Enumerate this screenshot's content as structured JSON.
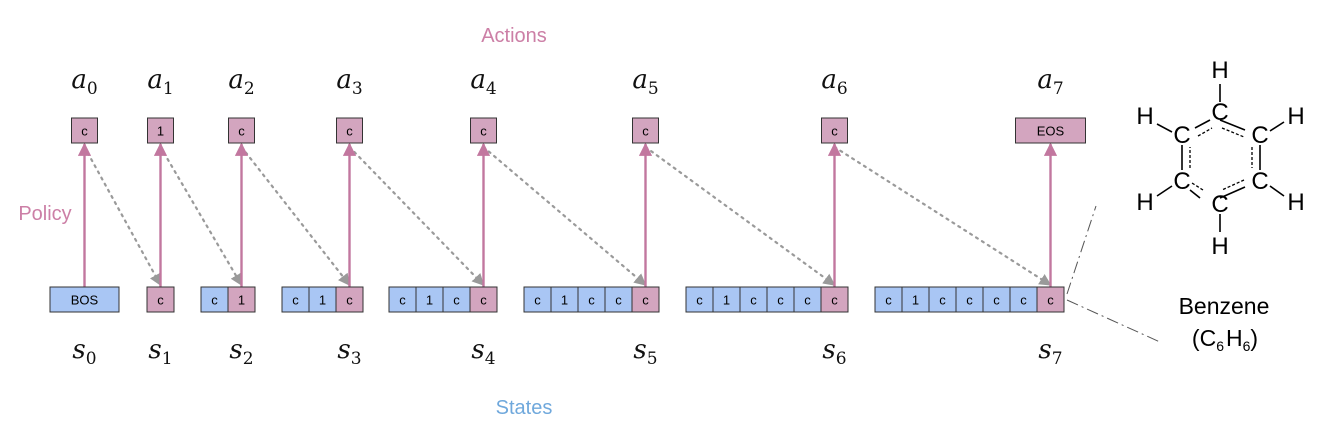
{
  "title_actions": "Actions",
  "label_policy": "Policy",
  "label_states": "States",
  "colors": {
    "action": "#d3a5bf",
    "state": "#a9c6f4",
    "policy_text": "#cc7fa6",
    "states_text": "#6fa8dc",
    "arrow": "#c2779f",
    "dotted": "#9a9a9a",
    "border": "#333333"
  },
  "actions": [
    {
      "var": "a",
      "sub": "0",
      "token": "c"
    },
    {
      "var": "a",
      "sub": "1",
      "token": "1"
    },
    {
      "var": "a",
      "sub": "2",
      "token": "c"
    },
    {
      "var": "a",
      "sub": "3",
      "token": "c"
    },
    {
      "var": "a",
      "sub": "4",
      "token": "c"
    },
    {
      "var": "a",
      "sub": "5",
      "token": "c"
    },
    {
      "var": "a",
      "sub": "6",
      "token": "c"
    },
    {
      "var": "a",
      "sub": "7",
      "token": "EOS"
    }
  ],
  "states": [
    {
      "var": "s",
      "sub": "0",
      "tokens": [
        "BOS"
      ]
    },
    {
      "var": "s",
      "sub": "1",
      "tokens": [
        "c"
      ]
    },
    {
      "var": "s",
      "sub": "2",
      "tokens": [
        "c",
        "1"
      ]
    },
    {
      "var": "s",
      "sub": "3",
      "tokens": [
        "c",
        "1",
        "c"
      ]
    },
    {
      "var": "s",
      "sub": "4",
      "tokens": [
        "c",
        "1",
        "c",
        "c"
      ]
    },
    {
      "var": "s",
      "sub": "5",
      "tokens": [
        "c",
        "1",
        "c",
        "c",
        "c"
      ]
    },
    {
      "var": "s",
      "sub": "6",
      "tokens": [
        "c",
        "1",
        "c",
        "c",
        "c",
        "c"
      ]
    },
    {
      "var": "s",
      "sub": "7",
      "tokens": [
        "c",
        "1",
        "c",
        "c",
        "c",
        "c",
        "c"
      ]
    }
  ],
  "molecule": {
    "name": "Benzene",
    "formula_open": "(C",
    "formula_sub1": "6",
    "formula_mid": "H",
    "formula_sub2": "6",
    "formula_close": ")",
    "atom_carbon": "C",
    "atom_hydrogen": "H"
  }
}
